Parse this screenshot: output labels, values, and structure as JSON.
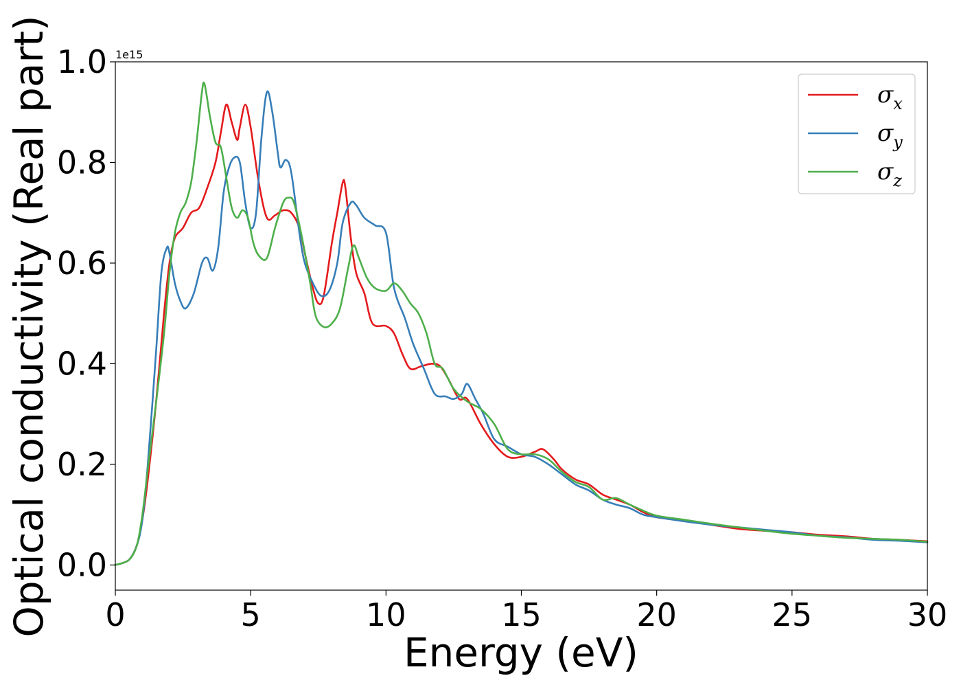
{
  "chart_data": {
    "type": "line",
    "title": "",
    "xlabel": "Energy (eV)",
    "ylabel": "Optical conductivity (Real part)",
    "y_offset_text": "1e15",
    "xlim": [
      0,
      30
    ],
    "ylim": [
      -0.05,
      1.0
    ],
    "x_ticks": [
      0,
      5,
      10,
      15,
      20,
      25,
      30
    ],
    "x_tick_labels": [
      "0",
      "5",
      "10",
      "15",
      "20",
      "25",
      "30"
    ],
    "y_ticks": [
      0.0,
      0.2,
      0.4,
      0.6,
      0.8,
      1.0
    ],
    "y_tick_labels": [
      "0.0",
      "0.2",
      "0.4",
      "0.6",
      "0.8",
      "1.0"
    ],
    "grid": false,
    "legend_position": "top-right",
    "series": [
      {
        "name": "σx",
        "symbol": "σ",
        "subscript": "x",
        "color": "#e41a1c",
        "points": [
          [
            0,
            0
          ],
          [
            0.5,
            0.01
          ],
          [
            0.8,
            0.04
          ],
          [
            1.0,
            0.09
          ],
          [
            1.2,
            0.17
          ],
          [
            1.5,
            0.32
          ],
          [
            1.8,
            0.5
          ],
          [
            2.0,
            0.6
          ],
          [
            2.2,
            0.65
          ],
          [
            2.5,
            0.67
          ],
          [
            2.8,
            0.7
          ],
          [
            3.1,
            0.71
          ],
          [
            3.4,
            0.75
          ],
          [
            3.7,
            0.8
          ],
          [
            3.9,
            0.86
          ],
          [
            4.1,
            0.915
          ],
          [
            4.3,
            0.88
          ],
          [
            4.5,
            0.845
          ],
          [
            4.6,
            0.87
          ],
          [
            4.8,
            0.915
          ],
          [
            5.0,
            0.87
          ],
          [
            5.3,
            0.76
          ],
          [
            5.6,
            0.69
          ],
          [
            5.9,
            0.695
          ],
          [
            6.2,
            0.705
          ],
          [
            6.5,
            0.7
          ],
          [
            6.8,
            0.67
          ],
          [
            7.0,
            0.62
          ],
          [
            7.3,
            0.55
          ],
          [
            7.5,
            0.52
          ],
          [
            7.7,
            0.535
          ],
          [
            8.0,
            0.64
          ],
          [
            8.2,
            0.7
          ],
          [
            8.4,
            0.76
          ],
          [
            8.5,
            0.75
          ],
          [
            8.7,
            0.65
          ],
          [
            8.9,
            0.58
          ],
          [
            9.2,
            0.54
          ],
          [
            9.5,
            0.48
          ],
          [
            10.0,
            0.475
          ],
          [
            10.3,
            0.46
          ],
          [
            10.6,
            0.42
          ],
          [
            10.9,
            0.39
          ],
          [
            11.3,
            0.395
          ],
          [
            11.7,
            0.4
          ],
          [
            12.0,
            0.395
          ],
          [
            12.3,
            0.37
          ],
          [
            12.7,
            0.33
          ],
          [
            13.0,
            0.33
          ],
          [
            13.5,
            0.28
          ],
          [
            14.0,
            0.24
          ],
          [
            14.5,
            0.215
          ],
          [
            15.0,
            0.215
          ],
          [
            15.5,
            0.225
          ],
          [
            15.8,
            0.23
          ],
          [
            16.2,
            0.21
          ],
          [
            16.5,
            0.19
          ],
          [
            17.0,
            0.17
          ],
          [
            17.5,
            0.16
          ],
          [
            18.0,
            0.14
          ],
          [
            18.5,
            0.13
          ],
          [
            19.0,
            0.12
          ],
          [
            19.5,
            0.105
          ],
          [
            20.0,
            0.095
          ],
          [
            21.0,
            0.088
          ],
          [
            22.0,
            0.08
          ],
          [
            23.0,
            0.072
          ],
          [
            24.0,
            0.068
          ],
          [
            25.0,
            0.065
          ],
          [
            26.0,
            0.06
          ],
          [
            27.0,
            0.057
          ],
          [
            28.0,
            0.052
          ],
          [
            29.0,
            0.05
          ],
          [
            30.0,
            0.047
          ]
        ]
      },
      {
        "name": "σy",
        "symbol": "σ",
        "subscript": "y",
        "color": "#377eb8",
        "points": [
          [
            0,
            0
          ],
          [
            0.5,
            0.01
          ],
          [
            0.8,
            0.04
          ],
          [
            1.0,
            0.09
          ],
          [
            1.2,
            0.2
          ],
          [
            1.5,
            0.42
          ],
          [
            1.7,
            0.58
          ],
          [
            1.9,
            0.63
          ],
          [
            2.0,
            0.62
          ],
          [
            2.2,
            0.56
          ],
          [
            2.4,
            0.525
          ],
          [
            2.6,
            0.51
          ],
          [
            2.9,
            0.54
          ],
          [
            3.2,
            0.6
          ],
          [
            3.4,
            0.61
          ],
          [
            3.6,
            0.585
          ],
          [
            3.8,
            0.63
          ],
          [
            4.0,
            0.74
          ],
          [
            4.2,
            0.79
          ],
          [
            4.4,
            0.81
          ],
          [
            4.6,
            0.8
          ],
          [
            4.8,
            0.72
          ],
          [
            5.0,
            0.67
          ],
          [
            5.2,
            0.7
          ],
          [
            5.4,
            0.85
          ],
          [
            5.6,
            0.94
          ],
          [
            5.8,
            0.9
          ],
          [
            6.0,
            0.82
          ],
          [
            6.1,
            0.79
          ],
          [
            6.3,
            0.805
          ],
          [
            6.5,
            0.78
          ],
          [
            6.8,
            0.66
          ],
          [
            7.0,
            0.6
          ],
          [
            7.3,
            0.56
          ],
          [
            7.6,
            0.535
          ],
          [
            7.9,
            0.545
          ],
          [
            8.2,
            0.6
          ],
          [
            8.4,
            0.68
          ],
          [
            8.7,
            0.72
          ],
          [
            8.9,
            0.715
          ],
          [
            9.2,
            0.69
          ],
          [
            9.6,
            0.675
          ],
          [
            10.0,
            0.66
          ],
          [
            10.3,
            0.55
          ],
          [
            10.7,
            0.49
          ],
          [
            11.0,
            0.44
          ],
          [
            11.4,
            0.39
          ],
          [
            11.8,
            0.34
          ],
          [
            12.2,
            0.335
          ],
          [
            12.5,
            0.33
          ],
          [
            12.8,
            0.34
          ],
          [
            13.0,
            0.36
          ],
          [
            13.3,
            0.33
          ],
          [
            13.6,
            0.3
          ],
          [
            14.0,
            0.25
          ],
          [
            14.5,
            0.235
          ],
          [
            15.0,
            0.22
          ],
          [
            15.5,
            0.215
          ],
          [
            16.0,
            0.2
          ],
          [
            16.5,
            0.18
          ],
          [
            17.0,
            0.16
          ],
          [
            17.5,
            0.148
          ],
          [
            18.0,
            0.13
          ],
          [
            18.5,
            0.12
          ],
          [
            19.0,
            0.113
          ],
          [
            19.5,
            0.1
          ],
          [
            20.0,
            0.095
          ],
          [
            21.0,
            0.087
          ],
          [
            22.0,
            0.08
          ],
          [
            23.0,
            0.075
          ],
          [
            24.0,
            0.07
          ],
          [
            25.0,
            0.065
          ],
          [
            26.0,
            0.058
          ],
          [
            27.0,
            0.055
          ],
          [
            28.0,
            0.05
          ],
          [
            29.0,
            0.048
          ],
          [
            30.0,
            0.045
          ]
        ]
      },
      {
        "name": "σz",
        "symbol": "σ",
        "subscript": "z",
        "color": "#4daf4a",
        "points": [
          [
            0,
            0
          ],
          [
            0.5,
            0.01
          ],
          [
            0.8,
            0.04
          ],
          [
            1.0,
            0.1
          ],
          [
            1.2,
            0.19
          ],
          [
            1.5,
            0.32
          ],
          [
            1.8,
            0.46
          ],
          [
            2.0,
            0.58
          ],
          [
            2.2,
            0.66
          ],
          [
            2.4,
            0.7
          ],
          [
            2.6,
            0.72
          ],
          [
            2.8,
            0.76
          ],
          [
            3.0,
            0.84
          ],
          [
            3.2,
            0.94
          ],
          [
            3.3,
            0.955
          ],
          [
            3.5,
            0.89
          ],
          [
            3.7,
            0.84
          ],
          [
            3.9,
            0.83
          ],
          [
            4.1,
            0.77
          ],
          [
            4.3,
            0.71
          ],
          [
            4.5,
            0.69
          ],
          [
            4.7,
            0.705
          ],
          [
            4.9,
            0.69
          ],
          [
            5.1,
            0.64
          ],
          [
            5.3,
            0.615
          ],
          [
            5.6,
            0.61
          ],
          [
            5.9,
            0.67
          ],
          [
            6.2,
            0.72
          ],
          [
            6.4,
            0.73
          ],
          [
            6.6,
            0.72
          ],
          [
            6.9,
            0.65
          ],
          [
            7.2,
            0.56
          ],
          [
            7.4,
            0.495
          ],
          [
            7.7,
            0.473
          ],
          [
            8.0,
            0.48
          ],
          [
            8.3,
            0.51
          ],
          [
            8.6,
            0.59
          ],
          [
            8.8,
            0.635
          ],
          [
            9.0,
            0.61
          ],
          [
            9.3,
            0.57
          ],
          [
            9.6,
            0.55
          ],
          [
            10.0,
            0.545
          ],
          [
            10.3,
            0.56
          ],
          [
            10.6,
            0.545
          ],
          [
            10.9,
            0.52
          ],
          [
            11.2,
            0.5
          ],
          [
            11.5,
            0.46
          ],
          [
            11.8,
            0.4
          ],
          [
            12.1,
            0.39
          ],
          [
            12.5,
            0.35
          ],
          [
            13.0,
            0.325
          ],
          [
            13.5,
            0.31
          ],
          [
            14.0,
            0.28
          ],
          [
            14.5,
            0.23
          ],
          [
            15.0,
            0.22
          ],
          [
            15.5,
            0.22
          ],
          [
            16.0,
            0.21
          ],
          [
            16.5,
            0.185
          ],
          [
            17.0,
            0.165
          ],
          [
            17.5,
            0.155
          ],
          [
            18.0,
            0.13
          ],
          [
            18.5,
            0.133
          ],
          [
            19.0,
            0.12
          ],
          [
            19.5,
            0.108
          ],
          [
            20.0,
            0.098
          ],
          [
            21.0,
            0.09
          ],
          [
            22.0,
            0.082
          ],
          [
            23.0,
            0.075
          ],
          [
            24.0,
            0.068
          ],
          [
            25.0,
            0.062
          ],
          [
            26.0,
            0.058
          ],
          [
            27.0,
            0.054
          ],
          [
            28.0,
            0.052
          ],
          [
            29.0,
            0.05
          ],
          [
            30.0,
            0.046
          ]
        ]
      }
    ]
  }
}
